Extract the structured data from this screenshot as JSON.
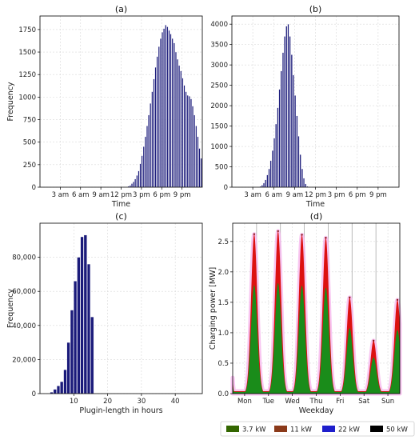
{
  "chart_data": [
    {
      "id": "a",
      "type": "bar",
      "title": "(a)",
      "xlabel": "Time",
      "ylabel": "Frequency",
      "ylim": [
        0,
        1900
      ],
      "xlim": [
        0,
        24
      ],
      "yticks": [
        0,
        250,
        500,
        750,
        1000,
        1250,
        1500,
        1750
      ],
      "ytick_labels": [
        "0",
        "250",
        "500",
        "750",
        "1000",
        "1250",
        "1500",
        "1750"
      ],
      "xticks": [
        3,
        6,
        9,
        12,
        15,
        18,
        21
      ],
      "xtick_labels": [
        "3 am",
        "6 am",
        "9 am",
        "12 pm",
        "3 pm",
        "6 pm",
        "9 pm"
      ],
      "grid": true,
      "color": "#1a1a7a",
      "x": [
        13.0,
        13.25,
        13.5,
        13.75,
        14.0,
        14.25,
        14.5,
        14.75,
        15.0,
        15.25,
        15.5,
        15.75,
        16.0,
        16.25,
        16.5,
        16.75,
        17.0,
        17.25,
        17.5,
        17.75,
        18.0,
        18.25,
        18.5,
        18.75,
        19.0,
        19.25,
        19.5,
        19.75,
        20.0,
        20.25,
        20.5,
        20.75,
        21.0,
        21.25,
        21.5,
        21.75,
        22.0,
        22.25,
        22.5,
        22.75,
        23.0,
        23.25,
        23.5,
        23.75
      ],
      "values": [
        10,
        20,
        40,
        60,
        90,
        130,
        180,
        260,
        350,
        450,
        560,
        680,
        800,
        930,
        1060,
        1200,
        1330,
        1450,
        1560,
        1650,
        1720,
        1760,
        1800,
        1780,
        1740,
        1700,
        1650,
        1600,
        1500,
        1420,
        1350,
        1290,
        1210,
        1130,
        1060,
        1020,
        1010,
        980,
        900,
        800,
        680,
        560,
        430,
        320
      ]
    },
    {
      "id": "b",
      "type": "bar",
      "title": "(b)",
      "xlabel": "Time",
      "ylabel": "",
      "ylim": [
        0,
        4200
      ],
      "xlim": [
        0,
        24
      ],
      "yticks": [
        0,
        500,
        1000,
        1500,
        2000,
        2500,
        3000,
        3500,
        4000
      ],
      "ytick_labels": [
        "0",
        "500",
        "1000",
        "1500",
        "2000",
        "2500",
        "3000",
        "3500",
        "4000"
      ],
      "xticks": [
        3,
        6,
        9,
        12,
        15,
        18,
        21
      ],
      "xtick_labels": [
        "3 am",
        "6 am",
        "9 am",
        "12 pm",
        "3 pm",
        "6 pm",
        "9 pm"
      ],
      "grid": true,
      "color": "#1a1a7a",
      "x": [
        4.0,
        4.25,
        4.5,
        4.75,
        5.0,
        5.25,
        5.5,
        5.75,
        6.0,
        6.25,
        6.5,
        6.75,
        7.0,
        7.25,
        7.5,
        7.75,
        8.0,
        8.25,
        8.5,
        8.75,
        9.0,
        9.25,
        9.5,
        9.75,
        10.0,
        10.25,
        10.5,
        10.75
      ],
      "values": [
        20,
        50,
        100,
        180,
        300,
        450,
        650,
        900,
        1200,
        1550,
        1950,
        2400,
        2850,
        3300,
        3700,
        3950,
        4000,
        3700,
        3250,
        2750,
        2250,
        1750,
        1250,
        800,
        450,
        220,
        80,
        20
      ]
    },
    {
      "id": "c",
      "type": "bar",
      "title": "(c)",
      "xlabel": "Plugin-length in hours",
      "ylabel": "Frequency",
      "ylim": [
        0,
        100000
      ],
      "xlim": [
        0,
        48
      ],
      "yticks": [
        0,
        20000,
        40000,
        60000,
        80000
      ],
      "ytick_labels": [
        "0",
        "20,000",
        "40,000",
        "60,000",
        "80,000"
      ],
      "xticks": [
        10,
        20,
        30,
        40
      ],
      "xtick_labels": [
        "10",
        "20",
        "30",
        "40"
      ],
      "grid": true,
      "color": "#1a1a7a",
      "x": [
        3,
        4,
        5,
        6,
        7,
        8,
        9,
        10,
        11,
        12,
        13,
        14,
        15
      ],
      "values": [
        800,
        2500,
        4500,
        7000,
        14000,
        30000,
        49000,
        66000,
        80000,
        92000,
        93000,
        76000,
        45000
      ]
    },
    {
      "id": "d",
      "type": "area",
      "title": "(d)",
      "xlabel": "Weekday",
      "ylabel": "Charging power [MW]",
      "ylim": [
        0,
        2.8
      ],
      "xlim": [
        0,
        7
      ],
      "yticks": [
        0,
        0.5,
        1.0,
        1.5,
        2.0,
        2.5
      ],
      "ytick_labels": [
        "0.0",
        "0.5",
        "1.0",
        "1.5",
        "2.0",
        "2.5"
      ],
      "categories": [
        "Mon",
        "Tue",
        "Wed",
        "Thu",
        "Fri",
        "Sat",
        "Sun"
      ],
      "grid": true,
      "peaks_x": [
        0.9,
        1.9,
        2.9,
        3.9,
        4.9,
        5.9,
        6.9
      ],
      "peak_values": [
        2.62,
        2.67,
        2.61,
        2.56,
        1.58,
        0.87,
        1.54
      ],
      "start_value": 1.05,
      "series": [
        {
          "name": "3.7 kW",
          "color": "#1a8c1a",
          "share": 0.68
        },
        {
          "name": "11 kW",
          "color": "#dd1111",
          "share": 0.32
        },
        {
          "name": "22 kW",
          "color": "#1f1fcc",
          "share": 0.0
        },
        {
          "name": "50 kW",
          "color": "#000000",
          "share": 0.0
        }
      ]
    }
  ],
  "legend": [
    {
      "label": "3.7 kW",
      "color": "#336600"
    },
    {
      "label": "11 kW",
      "color": "#8b3a1a"
    },
    {
      "label": "22 kW",
      "color": "#1f1fcc"
    },
    {
      "label": "50 kW",
      "color": "#000000"
    }
  ]
}
